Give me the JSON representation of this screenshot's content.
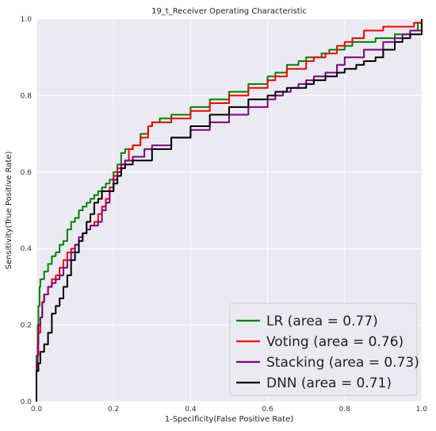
{
  "chart_data": {
    "type": "line",
    "title": "19_t_Receiver Operating Characteristic",
    "xlabel": "1-Specificity(False Positive Rate)",
    "ylabel": "Sensitivity(True Positive Rate)",
    "xlim": [
      0,
      1
    ],
    "ylim": [
      0,
      1
    ],
    "xticks": [
      "0.0",
      "0.2",
      "0.4",
      "0.6",
      "0.8",
      "1.0"
    ],
    "yticks": [
      "0.0",
      "0.2",
      "0.4",
      "0.6",
      "0.8",
      "1.0"
    ],
    "grid": true,
    "legend_position": "bottom-right",
    "series": [
      {
        "name": "LR (area = 0.77)",
        "color": "#008000",
        "x": [
          0.0,
          0.0,
          0.003,
          0.005,
          0.008,
          0.01,
          0.015,
          0.02,
          0.03,
          0.04,
          0.05,
          0.06,
          0.07,
          0.08,
          0.09,
          0.1,
          0.11,
          0.12,
          0.13,
          0.14,
          0.15,
          0.16,
          0.17,
          0.18,
          0.19,
          0.2,
          0.21,
          0.22,
          0.23,
          0.25,
          0.27,
          0.29,
          0.3,
          0.32,
          0.35,
          0.4,
          0.45,
          0.5,
          0.55,
          0.6,
          0.62,
          0.65,
          0.68,
          0.7,
          0.72,
          0.74,
          0.76,
          0.8,
          0.82,
          0.85,
          0.88,
          0.9,
          0.93,
          0.95,
          0.97,
          0.99,
          1.0
        ],
        "y": [
          0.0,
          0.12,
          0.2,
          0.25,
          0.3,
          0.32,
          0.32,
          0.34,
          0.36,
          0.38,
          0.39,
          0.41,
          0.42,
          0.45,
          0.47,
          0.48,
          0.5,
          0.51,
          0.52,
          0.53,
          0.54,
          0.55,
          0.56,
          0.57,
          0.58,
          0.6,
          0.62,
          0.65,
          0.66,
          0.67,
          0.7,
          0.72,
          0.73,
          0.74,
          0.75,
          0.77,
          0.79,
          0.81,
          0.83,
          0.85,
          0.86,
          0.88,
          0.89,
          0.9,
          0.9,
          0.91,
          0.92,
          0.93,
          0.94,
          0.94,
          0.95,
          0.95,
          0.96,
          0.96,
          0.97,
          0.99,
          1.0
        ]
      },
      {
        "name": "Voting (area = 0.76)",
        "color": "#ff0000",
        "x": [
          0.0,
          0.0,
          0.003,
          0.005,
          0.01,
          0.015,
          0.02,
          0.03,
          0.04,
          0.05,
          0.06,
          0.07,
          0.08,
          0.09,
          0.1,
          0.11,
          0.12,
          0.13,
          0.14,
          0.15,
          0.16,
          0.17,
          0.18,
          0.19,
          0.2,
          0.21,
          0.22,
          0.23,
          0.24,
          0.25,
          0.27,
          0.29,
          0.3,
          0.32,
          0.35,
          0.4,
          0.45,
          0.5,
          0.55,
          0.6,
          0.62,
          0.65,
          0.7,
          0.72,
          0.75,
          0.78,
          0.8,
          0.82,
          0.85,
          0.9,
          0.95,
          0.97,
          0.98,
          1.0
        ],
        "y": [
          0.0,
          0.08,
          0.12,
          0.18,
          0.22,
          0.26,
          0.28,
          0.3,
          0.32,
          0.33,
          0.35,
          0.37,
          0.39,
          0.4,
          0.41,
          0.43,
          0.44,
          0.45,
          0.46,
          0.47,
          0.49,
          0.51,
          0.53,
          0.56,
          0.59,
          0.61,
          0.62,
          0.63,
          0.66,
          0.67,
          0.69,
          0.72,
          0.73,
          0.73,
          0.74,
          0.76,
          0.78,
          0.8,
          0.82,
          0.84,
          0.85,
          0.87,
          0.89,
          0.9,
          0.91,
          0.93,
          0.94,
          0.95,
          0.97,
          0.98,
          0.98,
          0.98,
          0.99,
          1.0
        ]
      },
      {
        "name": "Stacking (area = 0.73)",
        "color": "#800080",
        "x": [
          0.0,
          0.0,
          0.003,
          0.005,
          0.01,
          0.015,
          0.02,
          0.03,
          0.04,
          0.05,
          0.06,
          0.07,
          0.08,
          0.09,
          0.1,
          0.11,
          0.12,
          0.13,
          0.14,
          0.15,
          0.16,
          0.17,
          0.18,
          0.19,
          0.2,
          0.21,
          0.22,
          0.23,
          0.25,
          0.28,
          0.3,
          0.35,
          0.4,
          0.45,
          0.5,
          0.55,
          0.6,
          0.62,
          0.64,
          0.66,
          0.68,
          0.7,
          0.72,
          0.75,
          0.78,
          0.8,
          0.85,
          0.9,
          0.93,
          0.95,
          0.97,
          1.0
        ],
        "y": [
          0.0,
          0.1,
          0.15,
          0.2,
          0.22,
          0.26,
          0.28,
          0.3,
          0.31,
          0.32,
          0.33,
          0.35,
          0.37,
          0.39,
          0.41,
          0.43,
          0.44,
          0.45,
          0.46,
          0.46,
          0.47,
          0.5,
          0.52,
          0.55,
          0.58,
          0.6,
          0.62,
          0.63,
          0.64,
          0.66,
          0.67,
          0.69,
          0.71,
          0.73,
          0.75,
          0.77,
          0.79,
          0.8,
          0.81,
          0.82,
          0.83,
          0.84,
          0.85,
          0.86,
          0.88,
          0.9,
          0.92,
          0.94,
          0.95,
          0.96,
          0.97,
          1.0
        ]
      },
      {
        "name": "DNN (area = 0.71)",
        "color": "#000000",
        "x": [
          0.0,
          0.0,
          0.005,
          0.01,
          0.02,
          0.03,
          0.04,
          0.05,
          0.06,
          0.07,
          0.08,
          0.09,
          0.1,
          0.11,
          0.12,
          0.13,
          0.14,
          0.15,
          0.16,
          0.17,
          0.18,
          0.19,
          0.2,
          0.21,
          0.22,
          0.23,
          0.25,
          0.3,
          0.35,
          0.4,
          0.45,
          0.5,
          0.55,
          0.58,
          0.6,
          0.62,
          0.65,
          0.7,
          0.72,
          0.75,
          0.78,
          0.8,
          0.83,
          0.85,
          0.88,
          0.9,
          0.93,
          0.95,
          0.97,
          1.0
        ],
        "y": [
          0.0,
          0.08,
          0.1,
          0.13,
          0.15,
          0.18,
          0.23,
          0.25,
          0.27,
          0.3,
          0.33,
          0.37,
          0.39,
          0.42,
          0.44,
          0.47,
          0.49,
          0.52,
          0.53,
          0.55,
          0.55,
          0.55,
          0.57,
          0.59,
          0.61,
          0.62,
          0.63,
          0.66,
          0.69,
          0.72,
          0.75,
          0.77,
          0.79,
          0.79,
          0.8,
          0.81,
          0.82,
          0.83,
          0.84,
          0.85,
          0.86,
          0.87,
          0.88,
          0.89,
          0.9,
          0.92,
          0.94,
          0.95,
          0.96,
          1.0
        ]
      }
    ]
  }
}
